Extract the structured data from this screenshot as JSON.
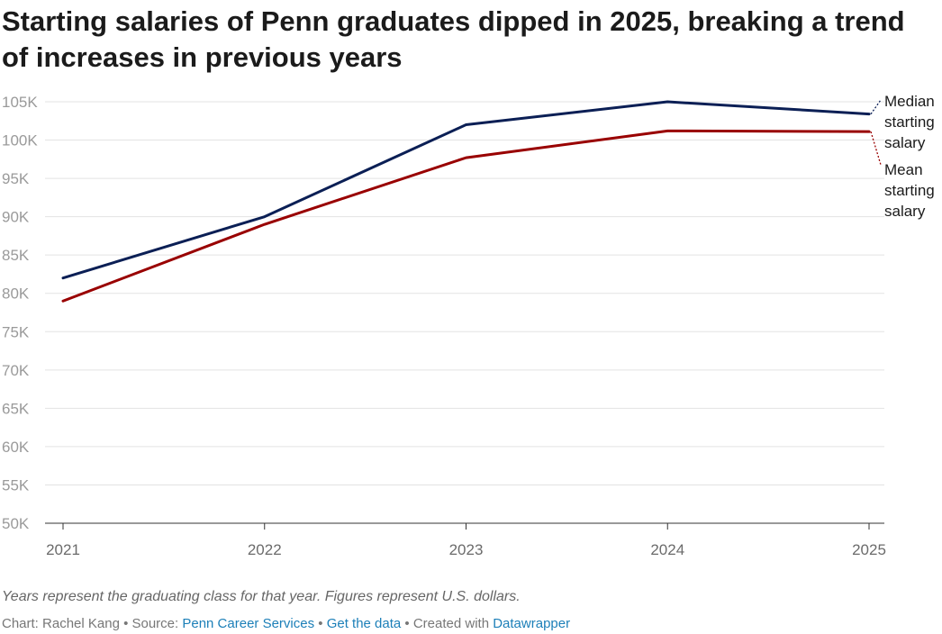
{
  "title": "Starting salaries of Penn graduates dipped in 2025, breaking a trend of increases in previous years",
  "chart_data": {
    "type": "line",
    "x": [
      "2021",
      "2022",
      "2023",
      "2024",
      "2025"
    ],
    "ylim": [
      50000,
      105000
    ],
    "yticks": [
      {
        "value": 50000,
        "label": "50K"
      },
      {
        "value": 55000,
        "label": "55K"
      },
      {
        "value": 60000,
        "label": "60K"
      },
      {
        "value": 65000,
        "label": "65K"
      },
      {
        "value": 70000,
        "label": "70K"
      },
      {
        "value": 75000,
        "label": "75K"
      },
      {
        "value": 80000,
        "label": "80K"
      },
      {
        "value": 85000,
        "label": "85K"
      },
      {
        "value": 90000,
        "label": "90K"
      },
      {
        "value": 95000,
        "label": "95K"
      },
      {
        "value": 100000,
        "label": "100K"
      },
      {
        "value": 105000,
        "label": "105K"
      }
    ],
    "grid": true,
    "series": [
      {
        "name": "Median starting salary",
        "label_lines": [
          "Median",
          "starting",
          "salary"
        ],
        "color": "#0b1f55",
        "values": [
          82000,
          90000,
          102000,
          105000,
          103400
        ]
      },
      {
        "name": "Mean starting salary",
        "label_lines": [
          "Mean",
          "starting",
          "salary"
        ],
        "color": "#990000",
        "values": [
          79000,
          89000,
          97700,
          101200,
          101100
        ]
      }
    ]
  },
  "notes": "Years represent the graduating class for that year. Figures represent U.S. dollars.",
  "byline": {
    "chart_prefix": "Chart: Rachel Kang • Source: ",
    "source_link": "Penn Career Services",
    "sep1": " • ",
    "get_data": "Get the data",
    "sep2": " • Created with ",
    "tool": "Datawrapper"
  }
}
